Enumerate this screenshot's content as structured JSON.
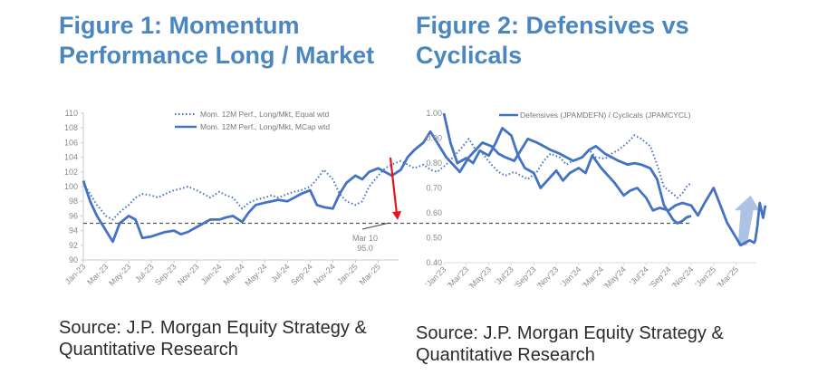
{
  "figure1": {
    "title_line1": "Figure 1: Momentum",
    "title_line2": "Performance Long / Market",
    "source_line1": "Source: J.P. Morgan Equity Strategy &",
    "source_line2": "Quantitative Research"
  },
  "figure2": {
    "title_line1": "Figure 2: Defensives vs",
    "title_line2": "Cyclicals",
    "source_line1": "Source: J.P. Morgan Equity Strategy &",
    "source_line2": "Quantitative Research"
  },
  "colors": {
    "title": "#4a86c0",
    "series": "#4472c4",
    "arrow_down": "#e8141b",
    "arrow_up": "#8aa9dc",
    "axis": "#c8c8c8",
    "ref_line": "#555555"
  },
  "chart_data": [
    {
      "type": "line",
      "title": "Figure 1: Momentum Performance Long / Market",
      "xlabel": "",
      "ylabel": "",
      "ylim": [
        90,
        110
      ],
      "yticks": [
        "90",
        "92",
        "94",
        "96",
        "98",
        "100",
        "102",
        "104",
        "106",
        "108",
        "110"
      ],
      "xticks": [
        "Jan-23",
        "Mar-23",
        "May-23",
        "Jul-23",
        "Sep-23",
        "Nov-23",
        "Jan-24",
        "Mar-24",
        "May-24",
        "Jul-24",
        "Sep-24",
        "Nov-24",
        "Jan-25",
        "Mar-25"
      ],
      "legend_position": "top-center",
      "grid": false,
      "x": [
        0,
        0.3,
        0.6,
        1,
        1.3,
        1.6,
        2,
        2.3,
        2.6,
        3,
        3.3,
        3.6,
        4,
        4.3,
        4.6,
        5,
        5.3,
        5.6,
        6,
        6.3,
        6.6,
        7,
        7.3,
        7.6,
        8,
        8.3,
        8.6,
        9,
        9.3,
        9.6,
        10,
        10.3,
        10.6,
        11,
        11.3,
        11.6,
        12,
        12.3,
        12.6,
        13,
        13.3,
        13.6,
        14,
        14.3,
        14.6,
        15,
        15.3,
        15.6,
        16,
        16.3,
        16.6,
        17,
        17.3,
        17.6,
        18,
        18.3,
        18.6,
        19,
        19.3,
        19.6,
        20,
        20.3,
        20.6,
        21,
        21.3,
        21.6,
        22,
        22.3,
        22.6,
        23,
        23.3,
        23.6,
        24,
        24.3,
        24.6,
        25,
        25.3,
        25.6,
        26,
        26.2,
        26.4,
        26.6,
        26.8
      ],
      "series": [
        {
          "name": "Mom. 12M Perf., Long/Mkt, Equal wtd",
          "style": "dotted",
          "values": [
            100.5,
            99,
            97.5,
            96,
            95.5,
            96.5,
            97.5,
            98.5,
            99,
            98.8,
            98.5,
            99,
            99.5,
            99.7,
            100,
            99.5,
            99,
            98.5,
            99.3,
            98.8,
            98.5,
            97,
            97.8,
            98.2,
            98.5,
            98.8,
            98.5,
            99,
            99.3,
            99.5,
            100,
            101,
            102.3,
            101,
            99,
            98,
            97.5,
            98,
            100,
            101.5,
            102.5,
            103,
            103.5,
            103,
            102.5,
            103,
            102.3,
            102,
            103,
            104,
            105,
            106.5,
            105,
            104.5,
            103,
            102,
            101.5,
            102,
            101.5,
            101,
            102,
            103.5,
            104.5,
            104,
            103,
            103.5,
            104,
            105,
            104,
            103.8,
            104.5,
            105,
            106,
            107,
            106.5,
            105.5,
            103,
            100,
            99,
            98.5,
            99,
            100,
            100.5
          ]
        },
        {
          "name": "Mom. 12M Perf., Long/Mkt, MCap wtd",
          "style": "solid",
          "values": [
            100.8,
            98,
            96,
            94,
            92.5,
            95,
            96,
            95.5,
            93,
            93.2,
            93.5,
            93.8,
            94,
            93.5,
            93.8,
            94.5,
            95,
            95.5,
            95.5,
            95.8,
            96,
            95.2,
            96.5,
            97.5,
            97.8,
            98,
            98.2,
            98,
            98.5,
            99,
            99.5,
            97.5,
            97.2,
            97,
            99,
            100.5,
            101.5,
            101,
            102,
            102.5,
            102,
            101.5,
            102.3,
            104,
            105,
            106,
            107.5,
            106,
            104,
            103,
            102,
            104,
            105,
            106,
            105.5,
            104.5,
            104,
            103.5,
            105,
            106.5,
            106,
            105.5,
            105,
            104.5,
            104,
            103.5,
            104,
            105,
            105.5,
            104.5,
            104,
            103.5,
            103,
            103.2,
            103,
            102.5,
            101,
            97.5,
            95.5,
            95,
            95.3,
            95.8,
            96
          ]
        }
      ],
      "reference_line": {
        "value": 95.0,
        "style": "dashed"
      },
      "annotations": [
        {
          "text_line1": "Mar 10",
          "text_line2": "95.0"
        },
        {
          "type": "arrow",
          "direction": "down",
          "color": "red"
        }
      ]
    },
    {
      "type": "line",
      "title": "Figure 2: Defensives vs Cyclicals",
      "xlabel": "",
      "ylabel": "",
      "ylim": [
        0.4,
        1.0
      ],
      "yticks": [
        "0.40",
        "0.50",
        "0.60",
        "0.70",
        "0.80",
        "0.90",
        "1.00"
      ],
      "xticks": [
        "'Jan'23",
        "'Mar'23",
        "'May'23",
        "'Jul'23",
        "'Sep'23",
        "'Nov'23",
        "'Jan'24",
        "'Mar'24",
        "'May'24",
        "'Jul'24",
        "'Sep'24",
        "'Nov'24",
        "'Jan'25",
        "'Mar'25"
      ],
      "legend_position": "top-center",
      "grid": false,
      "x": [
        0,
        0.3,
        0.6,
        1,
        1.3,
        1.6,
        2,
        2.3,
        2.6,
        3,
        3.3,
        3.6,
        4,
        4.3,
        4.6,
        5,
        5.3,
        5.6,
        6,
        6.3,
        6.6,
        7,
        7.3,
        7.6,
        8,
        8.3,
        8.6,
        9,
        9.3,
        9.6,
        10,
        10.3,
        10.6,
        11,
        11.3,
        11.6,
        12,
        12.3,
        12.6,
        13,
        13.2,
        13.4,
        13.6,
        13.8
      ],
      "series": [
        {
          "name": "Defensives (JPAMDEFN) / Cyclicals (JPAMCYCL)",
          "style": "solid",
          "values": [
            1.0,
            0.88,
            0.8,
            0.82,
            0.8,
            0.85,
            0.83,
            0.88,
            0.94,
            0.91,
            0.83,
            0.78,
            0.76,
            0.7,
            0.73,
            0.77,
            0.73,
            0.76,
            0.78,
            0.76,
            0.83,
            0.78,
            0.75,
            0.72,
            0.67,
            0.69,
            0.7,
            0.66,
            0.61,
            0.62,
            0.61,
            0.63,
            0.64,
            0.63,
            0.59,
            0.64,
            0.7,
            0.63,
            0.56,
            0.5,
            0.47,
            0.48,
            0.49,
            0.48
          ]
        }
      ],
      "tail_values": [
        0.49,
        0.55,
        0.64,
        0.58,
        0.63
      ],
      "annotations": [
        {
          "type": "arrow",
          "direction": "up",
          "color": "light-blue"
        }
      ]
    }
  ]
}
